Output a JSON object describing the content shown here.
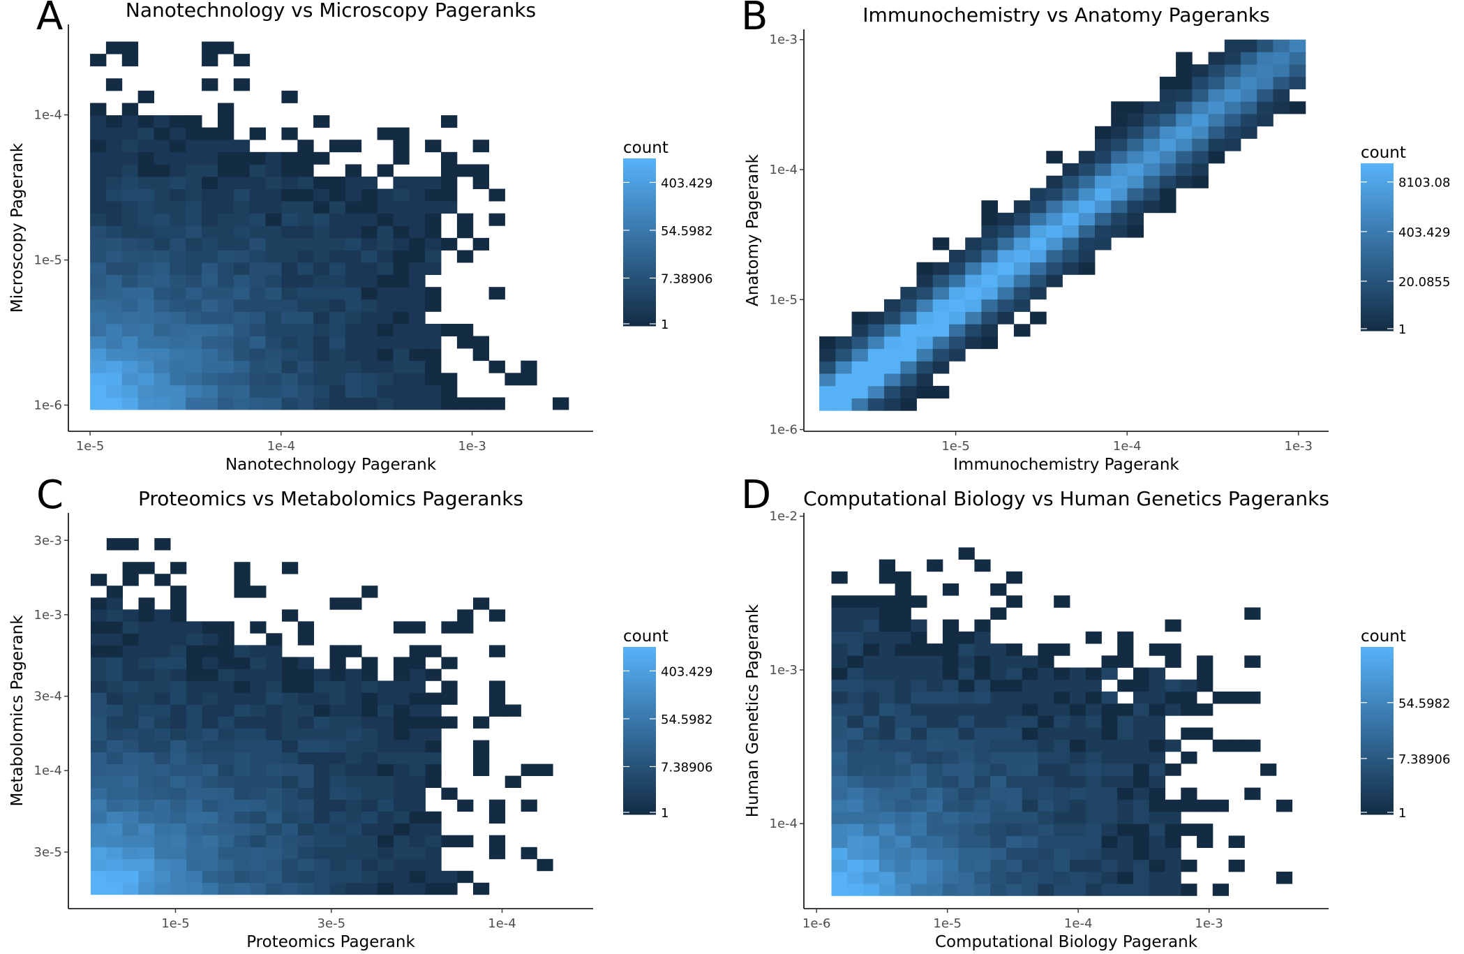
{
  "chart_data": [
    {
      "panel": "A",
      "type": "heatmap",
      "title": "Nanotechnology vs Microscopy Pageranks",
      "xlabel": "Nanotechnology Pagerank",
      "ylabel": "Microscopy Pagerank",
      "x_scale": "log10",
      "y_scale": "log10",
      "xlim": [
        7.7e-06,
        0.0043
      ],
      "ylim": [
        6.6e-07,
        0.00042
      ],
      "x_ticks": [
        {
          "value": 1e-05,
          "label": "1e-5"
        },
        {
          "value": 0.0001,
          "label": "1e-4"
        },
        {
          "value": 0.001,
          "label": "1e-3"
        }
      ],
      "y_ticks": [
        {
          "value": 1e-06,
          "label": "1e-6"
        },
        {
          "value": 1e-05,
          "label": "1e-5"
        },
        {
          "value": 0.0001,
          "label": "1e-4"
        }
      ],
      "bins": 30,
      "x_range": [
        1e-05,
        0.0032
      ],
      "y_range": [
        9.3e-07,
        0.00032
      ],
      "pattern": "cloud",
      "seed": 11,
      "legend": {
        "title": "count",
        "max_count": 1100,
        "labels": [
          "403.429",
          "54.5982",
          "7.38906",
          "1"
        ]
      }
    },
    {
      "panel": "B",
      "type": "heatmap",
      "title": "Immunochemistry vs Anatomy Pageranks",
      "xlabel": "Immunochemistry Pagerank",
      "ylabel": "Anatomy Pagerank",
      "x_scale": "log10",
      "y_scale": "log10",
      "xlim": [
        1.3e-06,
        0.0015
      ],
      "ylim": [
        9.7e-07,
        0.0012
      ],
      "x_ticks": [
        {
          "value": 1e-05,
          "label": "1e-5"
        },
        {
          "value": 0.0001,
          "label": "1e-4"
        },
        {
          "value": 0.001,
          "label": "1e-3"
        }
      ],
      "y_ticks": [
        {
          "value": 1e-06,
          "label": "1e-6"
        },
        {
          "value": 1e-05,
          "label": "1e-5"
        },
        {
          "value": 0.0001,
          "label": "1e-4"
        },
        {
          "value": 0.001,
          "label": "1e-3"
        }
      ],
      "bins": 30,
      "x_range": [
        1.6e-06,
        0.0011
      ],
      "y_range": [
        1.4e-06,
        0.001
      ],
      "pattern": "diagonal",
      "seed": 23,
      "legend": {
        "title": "count",
        "max_count": 25000,
        "labels": [
          "8103.08",
          "403.429",
          "20.0855",
          "1"
        ]
      }
    },
    {
      "panel": "C",
      "type": "heatmap",
      "title": "Proteomics vs Metabolomics Pageranks",
      "xlabel": "Proteomics Pagerank",
      "ylabel": "Metabolomics Pagerank",
      "x_scale": "log10",
      "y_scale": "log10",
      "xlim": [
        4.7e-06,
        0.00019
      ],
      "ylim": [
        1.3e-05,
        0.0045
      ],
      "x_ticks": [
        {
          "value": 1e-05,
          "label": "1e-5"
        },
        {
          "value": 3e-05,
          "label": "3e-5"
        },
        {
          "value": 0.0001,
          "label": "1e-4"
        }
      ],
      "y_ticks": [
        {
          "value": 3e-05,
          "label": "3e-5"
        },
        {
          "value": 0.0001,
          "label": "1e-4"
        },
        {
          "value": 0.0003,
          "label": "3e-4"
        },
        {
          "value": 0.001,
          "label": "1e-3"
        },
        {
          "value": 0.003,
          "label": "3e-3"
        }
      ],
      "bins": 30,
      "x_range": [
        5.5e-06,
        0.00016
      ],
      "y_range": [
        1.6e-05,
        0.0031
      ],
      "pattern": "cloud",
      "seed": 37,
      "legend": {
        "title": "count",
        "max_count": 1100,
        "labels": [
          "403.429",
          "54.5982",
          "7.38906",
          "1"
        ]
      }
    },
    {
      "panel": "D",
      "type": "heatmap",
      "title": "Computational Biology vs Human Genetics Pageranks",
      "xlabel": "Computational Biology Pagerank",
      "ylabel": "Human Genetics Pagerank",
      "x_scale": "log10",
      "y_scale": "log10",
      "xlim": [
        8e-07,
        0.0082
      ],
      "ylim": [
        2.8e-05,
        0.0105
      ],
      "x_ticks": [
        {
          "value": 1e-06,
          "label": "1e-6"
        },
        {
          "value": 1e-05,
          "label": "1e-5"
        },
        {
          "value": 0.0001,
          "label": "1e-4"
        },
        {
          "value": 0.001,
          "label": "1e-3"
        }
      ],
      "y_ticks": [
        {
          "value": 0.0001,
          "label": "1e-4"
        },
        {
          "value": 0.001,
          "label": "1e-3"
        },
        {
          "value": 0.01,
          "label": "1e-2"
        }
      ],
      "bins": 30,
      "x_range": [
        1.3e-06,
        0.0057
      ],
      "y_range": [
        3.4e-05,
        0.0075
      ],
      "pattern": "cloud",
      "seed": 53,
      "legend": {
        "title": "count",
        "max_count": 400,
        "labels": [
          "54.5982",
          "7.38906",
          "1"
        ]
      }
    }
  ],
  "colors": {
    "low": "#132B43",
    "high": "#56B1F7",
    "axis": "#000000",
    "tick_text": "#4d4d4d"
  }
}
